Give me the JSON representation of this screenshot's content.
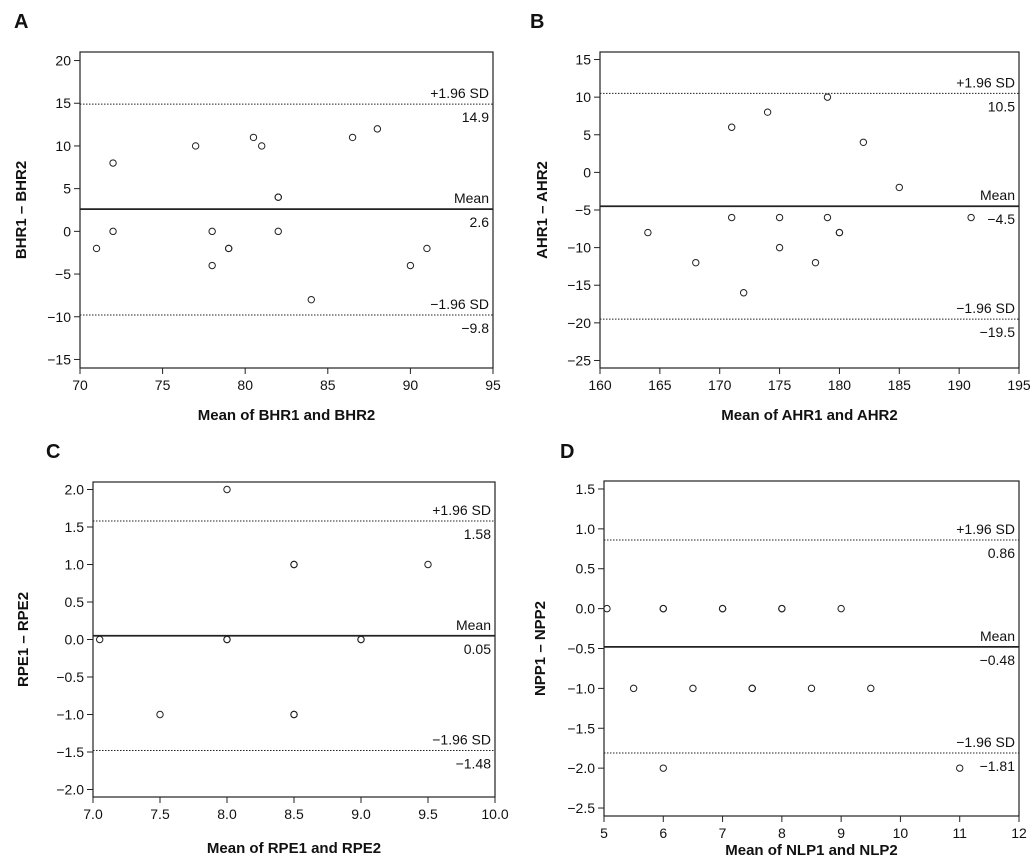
{
  "chart_data": [
    {
      "panel": "A",
      "type": "scatter",
      "xlabel": "Mean of BHR1 and BHR2",
      "ylabel": "BHR1 – BHR2",
      "xlim": [
        70,
        95
      ],
      "ylim": [
        -16,
        21
      ],
      "xticks": [
        70,
        75,
        80,
        85,
        90,
        95
      ],
      "yticks": [
        -15,
        -10,
        -5,
        0,
        5,
        10,
        15,
        20
      ],
      "lines": [
        {
          "label": "+1.96 SD",
          "value_label": "14.9",
          "y": 14.9,
          "style": "dotted"
        },
        {
          "label": "Mean",
          "value_label": "2.6",
          "y": 2.6,
          "style": "solid"
        },
        {
          "label": "−1.96 SD",
          "value_label": "−9.8",
          "y": -9.8,
          "style": "dotted"
        }
      ],
      "points": [
        {
          "x": 71,
          "y": -2
        },
        {
          "x": 72,
          "y": 8
        },
        {
          "x": 72,
          "y": 0
        },
        {
          "x": 77,
          "y": 10
        },
        {
          "x": 78,
          "y": 0
        },
        {
          "x": 78,
          "y": -4
        },
        {
          "x": 79,
          "y": -2
        },
        {
          "x": 79,
          "y": -2
        },
        {
          "x": 80.5,
          "y": 11
        },
        {
          "x": 81,
          "y": 10
        },
        {
          "x": 82,
          "y": 4
        },
        {
          "x": 82,
          "y": 4
        },
        {
          "x": 82,
          "y": 0
        },
        {
          "x": 84,
          "y": -8
        },
        {
          "x": 86.5,
          "y": 11
        },
        {
          "x": 88,
          "y": 12
        },
        {
          "x": 90,
          "y": -4
        },
        {
          "x": 91,
          "y": -2
        }
      ]
    },
    {
      "panel": "B",
      "type": "scatter",
      "xlabel": "Mean of AHR1 and AHR2",
      "ylabel": "AHR1 – AHR2",
      "xlim": [
        160,
        195
      ],
      "ylim": [
        -26,
        16
      ],
      "xticks": [
        160,
        165,
        170,
        175,
        180,
        185,
        190,
        195
      ],
      "yticks": [
        -25,
        -20,
        -15,
        -10,
        -5,
        0,
        5,
        10,
        15
      ],
      "lines": [
        {
          "label": "+1.96 SD",
          "value_label": "10.5",
          "y": 10.5,
          "style": "dotted"
        },
        {
          "label": "Mean",
          "value_label": "−4.5",
          "y": -4.5,
          "style": "solid"
        },
        {
          "label": "−1.96 SD",
          "value_label": "−19.5",
          "y": -19.5,
          "style": "dotted"
        }
      ],
      "points": [
        {
          "x": 164,
          "y": -8
        },
        {
          "x": 168,
          "y": -12
        },
        {
          "x": 171,
          "y": 6
        },
        {
          "x": 171,
          "y": -6
        },
        {
          "x": 172,
          "y": -16
        },
        {
          "x": 174,
          "y": 8
        },
        {
          "x": 175,
          "y": -6
        },
        {
          "x": 175,
          "y": -10
        },
        {
          "x": 178,
          "y": -12
        },
        {
          "x": 179,
          "y": 10
        },
        {
          "x": 179,
          "y": -6
        },
        {
          "x": 180,
          "y": -8
        },
        {
          "x": 180,
          "y": -8
        },
        {
          "x": 182,
          "y": 4
        },
        {
          "x": 185,
          "y": -2
        },
        {
          "x": 191,
          "y": -6
        }
      ]
    },
    {
      "panel": "C",
      "type": "scatter",
      "xlabel": "Mean of RPE1 and RPE2",
      "ylabel": "RPE1 – RPE2",
      "xlim": [
        7.0,
        10.0
      ],
      "ylim": [
        -2.1,
        2.1
      ],
      "xticks": [
        "7.0",
        "7.5",
        "8.0",
        "8.5",
        "9.0",
        "9.5",
        "10.0"
      ],
      "yticks": [
        "-2.0",
        "-1.5",
        "-1.0",
        "-0.5",
        "0.0",
        "0.5",
        "1.0",
        "1.5",
        "2.0"
      ],
      "lines": [
        {
          "label": "+1.96 SD",
          "value_label": "1.58",
          "y": 1.58,
          "style": "dotted"
        },
        {
          "label": "Mean",
          "value_label": "0.05",
          "y": 0.05,
          "style": "solid"
        },
        {
          "label": "−1.96 SD",
          "value_label": "−1.48",
          "y": -1.48,
          "style": "dotted"
        }
      ],
      "points": [
        {
          "x": 7.05,
          "y": 0
        },
        {
          "x": 7.5,
          "y": -1
        },
        {
          "x": 8.0,
          "y": 2
        },
        {
          "x": 8.0,
          "y": 0
        },
        {
          "x": 8.0,
          "y": 0
        },
        {
          "x": 8.5,
          "y": 1
        },
        {
          "x": 8.5,
          "y": 1
        },
        {
          "x": 8.5,
          "y": -1
        },
        {
          "x": 8.5,
          "y": -1
        },
        {
          "x": 9.0,
          "y": 0
        },
        {
          "x": 9.0,
          "y": 0
        },
        {
          "x": 9.5,
          "y": 1
        }
      ]
    },
    {
      "panel": "D",
      "type": "scatter",
      "xlabel": "Mean of NLP1 and NLP2",
      "ylabel": "NPP1 – NPP2",
      "xlim": [
        5,
        12
      ],
      "ylim": [
        -2.6,
        1.6
      ],
      "xticks": [
        "5",
        "6",
        "7",
        "8",
        "9",
        "10",
        "11",
        "12"
      ],
      "yticks": [
        "-2.5",
        "-2.0",
        "-1.5",
        "-1.0",
        "-0.5",
        "0.0",
        "0.5",
        "1.0",
        "1.5"
      ],
      "lines": [
        {
          "label": "+1.96 SD",
          "value_label": "0.86",
          "y": 0.86,
          "style": "dotted"
        },
        {
          "label": "Mean",
          "value_label": "−0.48",
          "y": -0.48,
          "style": "solid"
        },
        {
          "label": "−1.96 SD",
          "value_label": "−1.81",
          "y": -1.81,
          "style": "dotted"
        }
      ],
      "points": [
        {
          "x": 5.05,
          "y": 0
        },
        {
          "x": 5.5,
          "y": -1
        },
        {
          "x": 6,
          "y": 0
        },
        {
          "x": 6,
          "y": 0
        },
        {
          "x": 6,
          "y": -2
        },
        {
          "x": 6.5,
          "y": -1
        },
        {
          "x": 7,
          "y": 0
        },
        {
          "x": 7,
          "y": 0
        },
        {
          "x": 7.5,
          "y": -1
        },
        {
          "x": 7.5,
          "y": -1
        },
        {
          "x": 8,
          "y": 0
        },
        {
          "x": 8,
          "y": 0
        },
        {
          "x": 8.5,
          "y": -1
        },
        {
          "x": 9,
          "y": 0
        },
        {
          "x": 9.5,
          "y": -1
        },
        {
          "x": 11,
          "y": -2
        }
      ]
    }
  ]
}
